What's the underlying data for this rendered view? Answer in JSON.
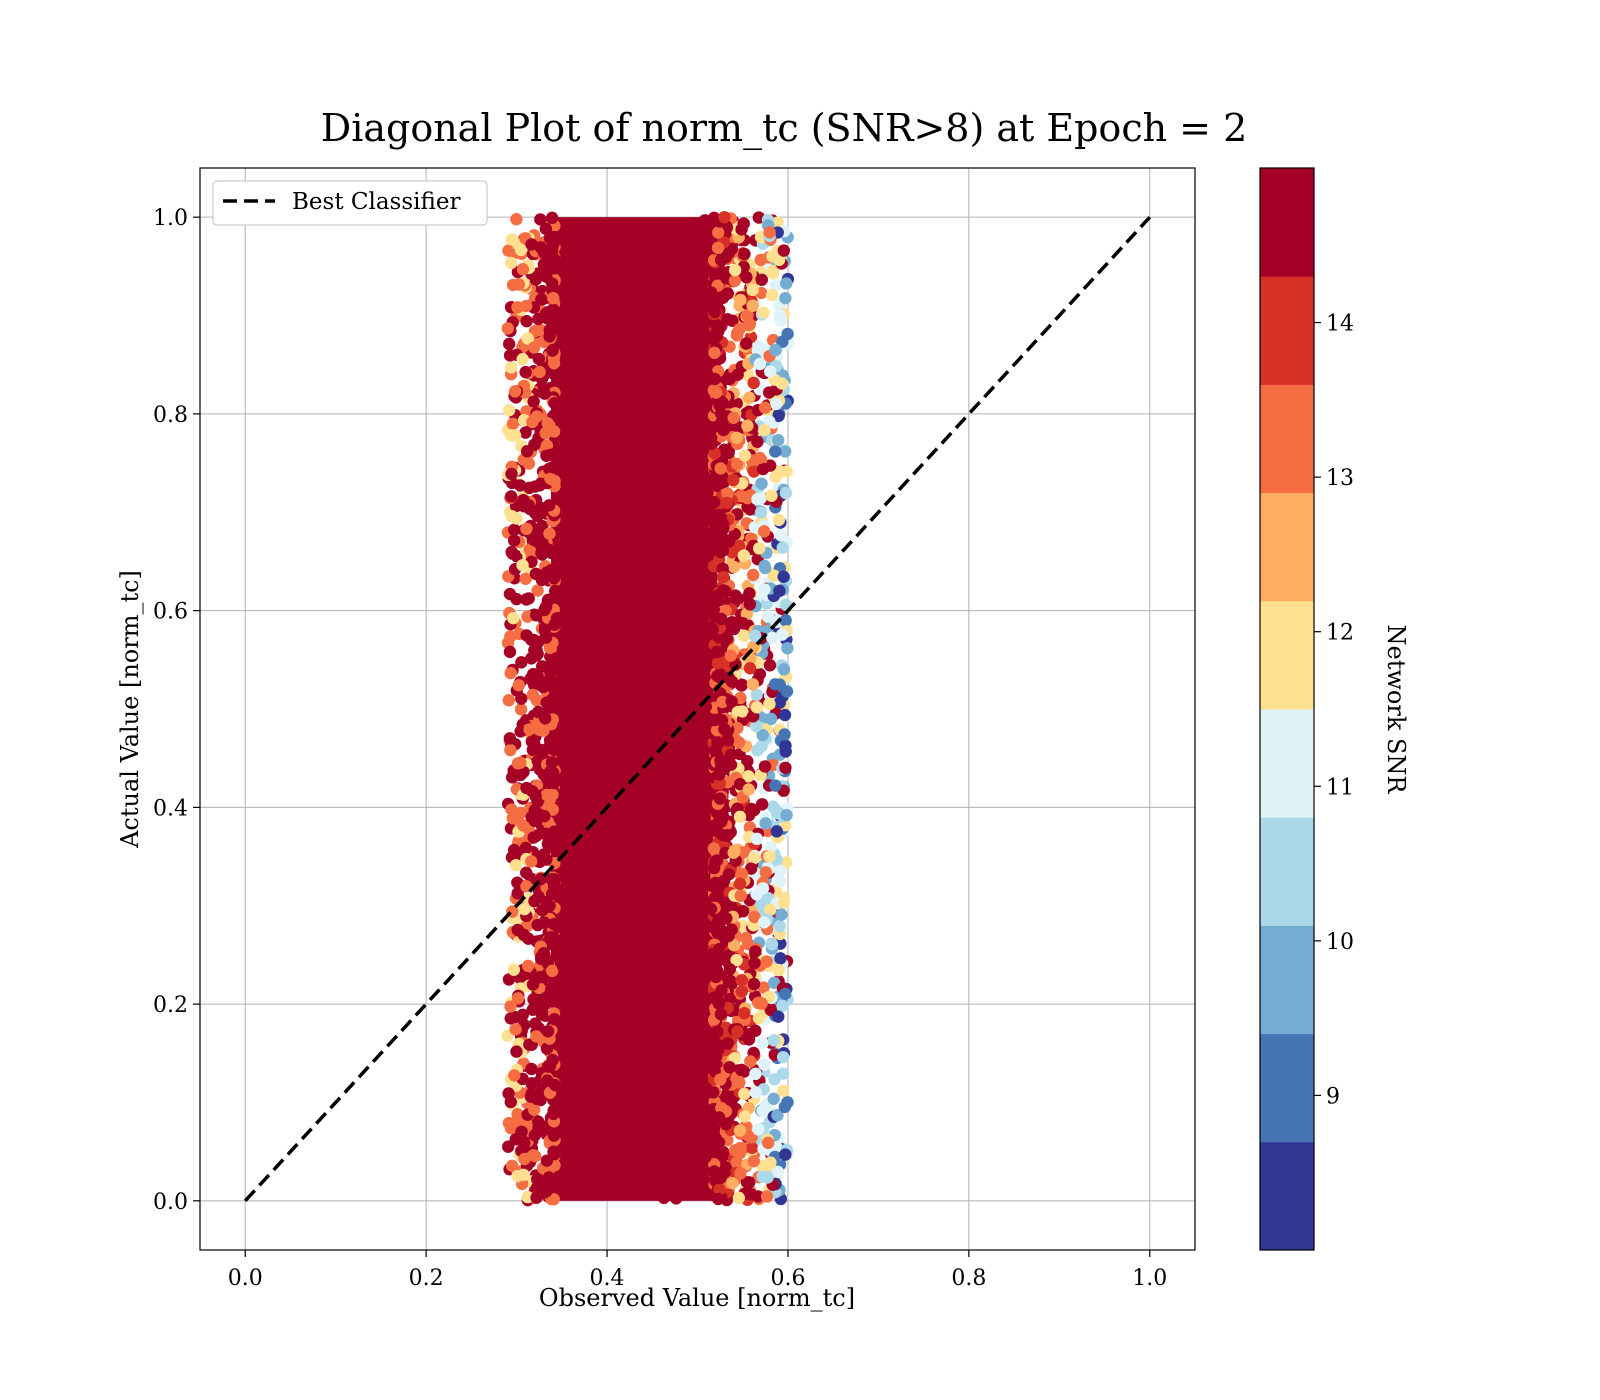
{
  "chart_data": {
    "type": "scatter",
    "title": "Diagonal Plot of norm_tc (SNR>8) at Epoch = 2",
    "xlabel": "Observed Value [norm_tc]",
    "ylabel": "Actual Value [norm_tc]",
    "xlim": [
      -0.05,
      1.05
    ],
    "ylim": [
      -0.05,
      1.05
    ],
    "xticks": [
      "0.0",
      "0.2",
      "0.4",
      "0.6",
      "0.8",
      "1.0"
    ],
    "yticks": [
      "0.0",
      "0.2",
      "0.4",
      "0.6",
      "0.8",
      "1.0"
    ],
    "grid": true,
    "legend": {
      "placement": "top-left",
      "entries": [
        "Best Classifier"
      ]
    },
    "reference_line": {
      "name": "Best Classifier",
      "style": "dashed",
      "color": "#000000",
      "x": [
        0.0,
        1.0
      ],
      "y": [
        0.0,
        1.0
      ]
    },
    "scatter": {
      "observed_range": [
        0.29,
        0.6
      ],
      "actual_range": [
        0.0,
        1.0
      ],
      "dense_core": [
        0.33,
        0.53
      ],
      "dominant_color": "#a50026",
      "note_values": "cloud of points: x concentrated around 0.43 (spread ~0.29–0.60), y uniform over 0–1; higher SNR points dominate the core, lower SNR points appear mainly at the right edge"
    },
    "colorbar": {
      "label": "Network SNR",
      "range": [
        8,
        15
      ],
      "ticks": [
        "9",
        "10",
        "11",
        "12",
        "13",
        "14"
      ],
      "colors": [
        "#313695",
        "#4575b4",
        "#74add1",
        "#abd9e9",
        "#e0f3f8",
        "#fee090",
        "#fdae61",
        "#f46d43",
        "#d73027",
        "#a50026"
      ]
    }
  }
}
